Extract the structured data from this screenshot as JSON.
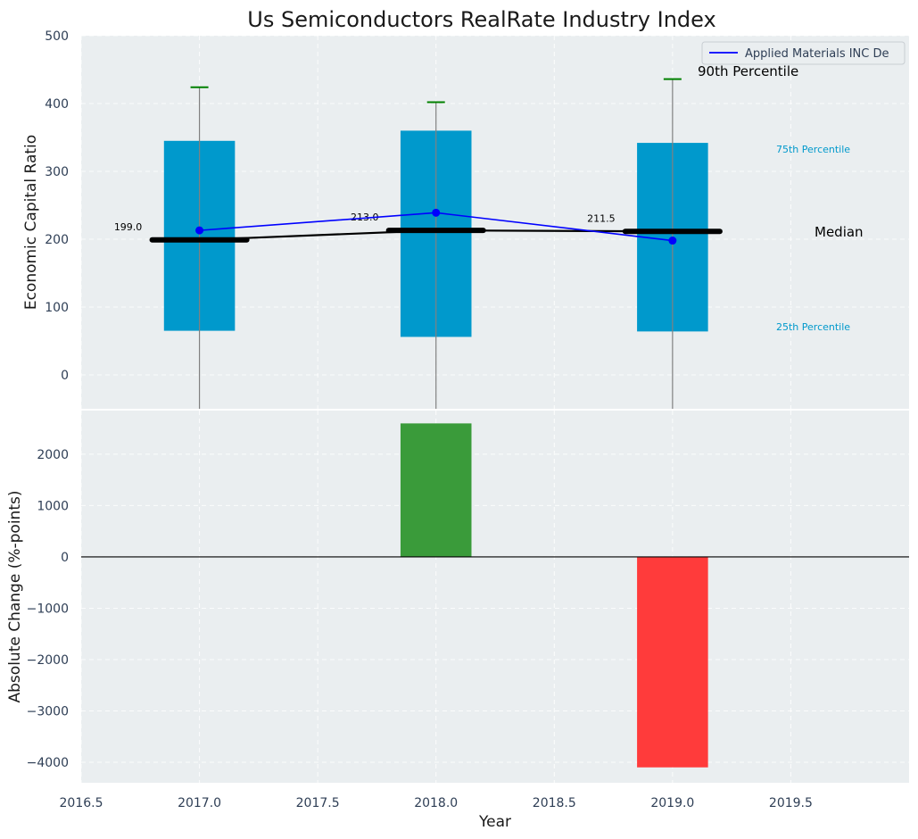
{
  "chart_data": {
    "title": "Us Semiconductors RealRate Industry Index",
    "xlabel": "Year",
    "x_ticks": [
      "2016.5",
      "2017.0",
      "2017.5",
      "2018.0",
      "2018.5",
      "2019.0",
      "2019.5"
    ],
    "x_tick_values": [
      2016.5,
      2017.0,
      2017.5,
      2018.0,
      2018.5,
      2019.0,
      2019.5
    ],
    "xlim": [
      2016.5,
      2020.0
    ],
    "top_panel": {
      "type": "bar",
      "ylabel": "Economic Capital Ratio",
      "ylim": [
        -50,
        500
      ],
      "y_ticks": [
        "0",
        "100",
        "200",
        "300",
        "400",
        "500"
      ],
      "y_tick_values": [
        0,
        100,
        200,
        300,
        400,
        500
      ],
      "grid": true,
      "categories": [
        2017.0,
        2018.0,
        2019.0
      ],
      "percentile_25": [
        65,
        56,
        64
      ],
      "percentile_75": [
        345,
        360,
        342
      ],
      "percentile_90": [
        424,
        402,
        436
      ],
      "median": [
        199.0,
        213.0,
        211.5
      ],
      "median_labels": [
        "199.0",
        "213.0",
        "211.5"
      ],
      "series": [
        {
          "name": "Applied Materials INC De",
          "x": [
            2017.0,
            2018.0,
            2019.0
          ],
          "values": [
            213,
            239,
            198
          ]
        }
      ],
      "annotations": {
        "p90": "90th Percentile",
        "p75": "75th Percentile",
        "median": "Median",
        "p25": "25th Percentile"
      },
      "legend_position": "top-right"
    },
    "bottom_panel": {
      "type": "bar",
      "ylabel": "Absolute Change (%-points)",
      "ylim": [
        -4400,
        2850
      ],
      "y_ticks": [
        "−4000",
        "−3000",
        "−2000",
        "−1000",
        "0",
        "1000",
        "2000"
      ],
      "y_tick_values": [
        -4000,
        -3000,
        -2000,
        -1000,
        0,
        1000,
        2000
      ],
      "grid": true,
      "categories": [
        2018.0,
        2019.0
      ],
      "values": [
        2600,
        -4100
      ]
    }
  },
  "colors": {
    "panel_bg": "#eaeef0",
    "bar_fill": "#0099cc",
    "whisker": "#808080",
    "cap": "#008000",
    "median": "#000000",
    "series": "#0000ff",
    "positive": "#3a9b3a",
    "negative": "#ff3b3b",
    "annot_blue": "#0099cc"
  }
}
